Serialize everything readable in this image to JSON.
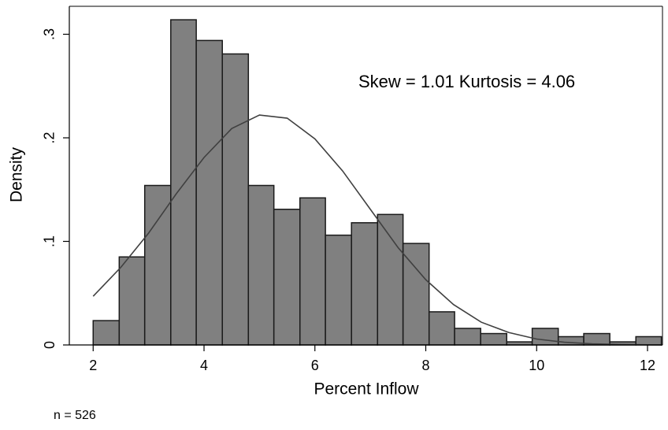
{
  "chart_data": {
    "type": "histogram",
    "xlabel": "Percent Inflow",
    "ylabel": "Density",
    "annotation": "Skew = 1.01  Kurtosis = 4.06",
    "note": "n = 526",
    "bins": [
      2,
      2.47,
      2.93,
      3.4,
      3.86,
      4.33,
      4.8,
      5.26,
      5.73,
      6.19,
      6.66,
      7.13,
      7.59,
      8.06,
      8.52,
      8.99,
      9.46,
      9.92,
      10.39,
      10.85,
      11.32,
      11.79,
      12.25
    ],
    "values": [
      0.0235,
      0.085,
      0.154,
      0.314,
      0.294,
      0.281,
      0.154,
      0.131,
      0.142,
      0.106,
      0.118,
      0.126,
      0.098,
      0.032,
      0.016,
      0.011,
      0.003,
      0.016,
      0.008,
      0.011,
      0.003,
      0.008
    ],
    "color": "#808080",
    "curve": {
      "x": [
        2,
        2.5,
        3,
        3.5,
        4,
        4.5,
        5,
        5.5,
        6,
        6.5,
        7,
        7.5,
        8,
        8.5,
        9,
        9.5,
        10,
        10.5,
        11,
        11.5,
        12,
        12.27
      ],
      "values": [
        0.047,
        0.075,
        0.108,
        0.146,
        0.181,
        0.209,
        0.222,
        0.219,
        0.199,
        0.168,
        0.131,
        0.094,
        0.063,
        0.039,
        0.022,
        0.012,
        0.0057,
        0.0026,
        0.0011,
        0.0004,
        0.00015,
        8e-05
      ],
      "color": "#404040"
    },
    "xlim": [
      1.57,
      12.27
    ],
    "ylim": [
      0,
      0.327
    ],
    "xticks": [
      2,
      4,
      6,
      8,
      10,
      12
    ],
    "yticks": [
      0,
      {
        "value": 0.1,
        "label": ".1"
      },
      {
        "value": 0.2,
        "label": ".2"
      },
      {
        "value": 0.3,
        "label": ".3"
      }
    ]
  }
}
